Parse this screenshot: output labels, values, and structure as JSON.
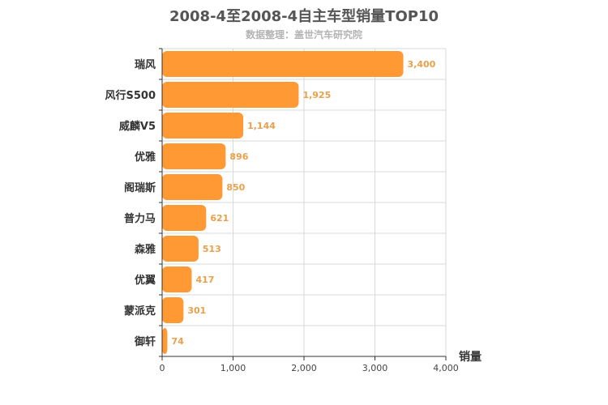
{
  "chart_data": {
    "type": "bar",
    "orientation": "horizontal",
    "title": "2008-4至2008-4自主车型销量TOP10",
    "subtitle": "数据整理：盖世汽车研究院",
    "xlabel": "销量",
    "categories": [
      "瑞风",
      "风行S500",
      "威麟V5",
      "优雅",
      "阁瑞斯",
      "普力马",
      "森雅",
      "优翼",
      "蒙派克",
      "御轩"
    ],
    "values": [
      3400,
      1925,
      1144,
      896,
      850,
      621,
      513,
      417,
      301,
      74
    ],
    "value_labels": [
      "3,400",
      "1,925",
      "1,144",
      "896",
      "850",
      "621",
      "513",
      "417",
      "301",
      "74"
    ],
    "xlim": [
      0,
      4000
    ],
    "xticks": [
      0,
      1000,
      2000,
      3000,
      4000
    ],
    "xtick_labels": [
      "0",
      "1,000",
      "2,000",
      "3,000",
      "4,000"
    ],
    "grid": true,
    "bar_color": "#ff9933"
  }
}
